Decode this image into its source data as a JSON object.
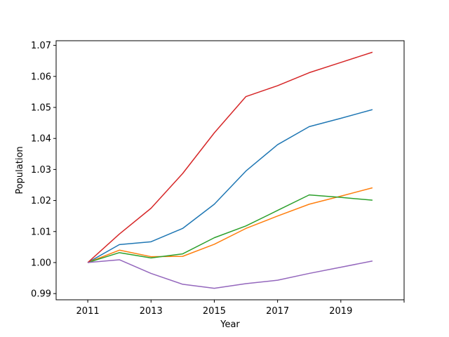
{
  "chart_data": {
    "type": "line",
    "title": "",
    "xlabel": "Year",
    "ylabel": "Population",
    "x": [
      2011,
      2012,
      2013,
      2014,
      2015,
      2016,
      2017,
      2018,
      2019,
      2020
    ],
    "xlim": [
      2010,
      2021
    ],
    "ylim": [
      0.988,
      1.0715
    ],
    "xticks": [
      2011,
      2013,
      2015,
      2017,
      2019,
      2021
    ],
    "xtick_labels": [
      "2011",
      "2013",
      "2015",
      "2017",
      "2019",
      ""
    ],
    "yticks": [
      0.99,
      1.0,
      1.01,
      1.02,
      1.03,
      1.04,
      1.05,
      1.06,
      1.07
    ],
    "ytick_labels": [
      "0.99",
      "1.00",
      "1.01",
      "1.02",
      "1.03",
      "1.04",
      "1.05",
      "1.06",
      "1.07"
    ],
    "grid": false,
    "legend": "none",
    "series": [
      {
        "color": "#1f77b4",
        "values": [
          1.0,
          1.0058,
          1.0067,
          1.011,
          1.0188,
          1.0295,
          1.038,
          1.0438,
          1.0465,
          1.0493
        ]
      },
      {
        "color": "#ff7f0e",
        "values": [
          1.0,
          1.004,
          1.0019,
          1.002,
          1.0059,
          1.011,
          1.015,
          1.0188,
          1.0214,
          1.0241
        ]
      },
      {
        "color": "#2ca02c",
        "values": [
          1.0,
          1.0032,
          1.0015,
          1.0028,
          1.008,
          1.0118,
          1.0168,
          1.0218,
          1.021,
          1.0201
        ]
      },
      {
        "color": "#d62728",
        "values": [
          1.0,
          1.0092,
          1.0175,
          1.0287,
          1.0418,
          1.0535,
          1.057,
          1.0612,
          1.0645,
          1.0678
        ]
      },
      {
        "color": "#9467bd",
        "values": [
          1.0,
          1.0009,
          0.9965,
          0.993,
          0.9917,
          0.9932,
          0.9943,
          0.9965,
          0.9985,
          1.0005
        ]
      }
    ]
  }
}
